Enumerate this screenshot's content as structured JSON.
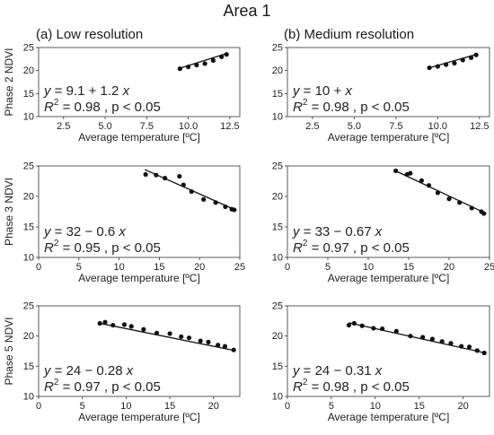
{
  "title": "Area 1",
  "columns": [
    "(a) Low resolution",
    "(b) Medium resolution"
  ],
  "chart_data": [
    {
      "type": "scatter",
      "panel": "(a) Low resolution / Phase 2",
      "xlabel": "Average temperature [ºC]",
      "ylabel": "Phase 2 NDVI",
      "xlim": [
        1,
        13.1
      ],
      "ylim": [
        10,
        25
      ],
      "xticks": [
        2.5,
        5.0,
        7.5,
        10.0,
        12.5
      ],
      "xtick_labels": [
        "2.5",
        "5.0",
        "7.5",
        "10.0",
        "12.5"
      ],
      "yticks": [
        10,
        15,
        20,
        25
      ],
      "eq": "y = 9.1 + 1.2 x",
      "stats": "R² = 0.98 , p < 0.05",
      "points": [
        [
          9.5,
          20.4
        ],
        [
          10.0,
          20.8
        ],
        [
          10.5,
          21.2
        ],
        [
          11.0,
          21.5
        ],
        [
          11.5,
          22.2
        ],
        [
          12.0,
          23.0
        ],
        [
          12.3,
          23.5
        ]
      ],
      "fit": [
        [
          9.4,
          20.4
        ],
        [
          12.4,
          23.8
        ]
      ]
    },
    {
      "type": "scatter",
      "panel": "(b) Medium resolution / Phase 2",
      "xlabel": "Average temperature [ºC]",
      "ylabel": "",
      "xlim": [
        1,
        13.1
      ],
      "ylim": [
        10,
        25
      ],
      "xticks": [
        2.5,
        5.0,
        7.5,
        10.0,
        12.5
      ],
      "xtick_labels": [
        "2.5",
        "5.0",
        "7.5",
        "10.0",
        "12.5"
      ],
      "yticks": [
        10,
        15,
        20,
        25
      ],
      "eq": "y = 10 + x",
      "stats": "R² = 0.98 , p < 0.05",
      "points": [
        [
          9.5,
          20.6
        ],
        [
          10.0,
          20.9
        ],
        [
          10.5,
          21.3
        ],
        [
          11.0,
          21.6
        ],
        [
          11.5,
          22.3
        ],
        [
          12.0,
          22.8
        ],
        [
          12.3,
          23.4
        ]
      ],
      "fit": [
        [
          9.4,
          20.5
        ],
        [
          12.4,
          23.6
        ]
      ]
    },
    {
      "type": "scatter",
      "panel": "(a) Low resolution / Phase 3",
      "xlabel": "Average temperature [ºC]",
      "ylabel": "Phase 3 NDVI",
      "xlim": [
        0,
        25
      ],
      "ylim": [
        10,
        25
      ],
      "xticks": [
        0,
        5,
        10,
        15,
        20,
        25
      ],
      "xtick_labels": [
        "0",
        "5",
        "10",
        "15",
        "20",
        "25"
      ],
      "yticks": [
        10,
        15,
        20,
        25
      ],
      "eq": "y = 32 − 0.6 x",
      "stats": "R² = 0.95 , p < 0.05",
      "points": [
        [
          13.3,
          23.6
        ],
        [
          14.6,
          23.5
        ],
        [
          15.7,
          23.0
        ],
        [
          17.5,
          23.3
        ],
        [
          18.0,
          21.9
        ],
        [
          19.0,
          20.8
        ],
        [
          20.5,
          19.5
        ],
        [
          22.0,
          19.0
        ],
        [
          23.2,
          18.3
        ],
        [
          24.0,
          17.9
        ],
        [
          24.3,
          17.8
        ]
      ],
      "fit": [
        [
          13.2,
          24.4
        ],
        [
          24.6,
          17.7
        ]
      ]
    },
    {
      "type": "scatter",
      "panel": "(b) Medium resolution / Phase 3",
      "xlabel": "Average temperature [ºC]",
      "ylabel": "",
      "xlim": [
        0,
        25
      ],
      "ylim": [
        10,
        25
      ],
      "xticks": [
        0,
        5,
        10,
        15,
        20,
        25
      ],
      "xtick_labels": [
        "0",
        "5",
        "10",
        "15",
        "20",
        "25"
      ],
      "yticks": [
        10,
        15,
        20,
        25
      ],
      "eq": "y = 33 − 0.67 x",
      "stats": "R² = 0.97 , p < 0.05",
      "points": [
        [
          13.4,
          24.2
        ],
        [
          14.8,
          23.6
        ],
        [
          15.2,
          23.8
        ],
        [
          16.6,
          22.6
        ],
        [
          17.5,
          21.8
        ],
        [
          18.6,
          20.6
        ],
        [
          20.0,
          19.6
        ],
        [
          21.3,
          19.0
        ],
        [
          22.8,
          18.1
        ],
        [
          24.0,
          17.5
        ],
        [
          24.3,
          17.2
        ]
      ],
      "fit": [
        [
          13.2,
          24.3
        ],
        [
          24.6,
          17.2
        ]
      ]
    },
    {
      "type": "scatter",
      "panel": "(a) Low resolution / Phase 5",
      "xlabel": "Average temperature [ºC]",
      "ylabel": "Phase 5 NDVI",
      "xlim": [
        0,
        23
      ],
      "ylim": [
        10,
        25
      ],
      "xticks": [
        0,
        5,
        10,
        15,
        20
      ],
      "xtick_labels": [
        "0",
        "5",
        "10",
        "15",
        "20"
      ],
      "yticks": [
        10,
        15,
        20,
        25
      ],
      "eq": "y = 24 − 0.28 x",
      "stats": "R² = 0.97 , p < 0.05",
      "points": [
        [
          7.0,
          22.1
        ],
        [
          7.6,
          22.3
        ],
        [
          8.5,
          21.8
        ],
        [
          9.8,
          21.9
        ],
        [
          10.6,
          21.6
        ],
        [
          12.0,
          21.1
        ],
        [
          13.5,
          20.5
        ],
        [
          15.0,
          20.4
        ],
        [
          16.3,
          19.9
        ],
        [
          17.2,
          19.7
        ],
        [
          18.5,
          19.2
        ],
        [
          19.4,
          19.0
        ],
        [
          20.5,
          18.5
        ],
        [
          21.3,
          18.3
        ],
        [
          22.3,
          17.7
        ]
      ],
      "fit": [
        [
          7.0,
          22.1
        ],
        [
          22.4,
          17.6
        ]
      ]
    },
    {
      "type": "scatter",
      "panel": "(b) Medium resolution / Phase 5",
      "xlabel": "Average temperature [ºC]",
      "ylabel": "",
      "xlim": [
        0,
        23
      ],
      "ylim": [
        10,
        25
      ],
      "xticks": [
        0,
        5,
        10,
        15,
        20
      ],
      "xtick_labels": [
        "0",
        "5",
        "10",
        "15",
        "20"
      ],
      "yticks": [
        10,
        15,
        20,
        25
      ],
      "eq": "y = 24 − 0.31 x",
      "stats": "R² = 0.98 , p < 0.05",
      "points": [
        [
          7.0,
          21.8
        ],
        [
          7.6,
          22.1
        ],
        [
          8.5,
          21.7
        ],
        [
          9.8,
          21.3
        ],
        [
          10.8,
          21.2
        ],
        [
          12.4,
          20.8
        ],
        [
          14.0,
          20.0
        ],
        [
          15.4,
          19.8
        ],
        [
          16.5,
          19.5
        ],
        [
          17.6,
          19.1
        ],
        [
          18.6,
          18.8
        ],
        [
          19.8,
          18.3
        ],
        [
          20.7,
          18.2
        ],
        [
          21.6,
          17.6
        ],
        [
          22.4,
          17.2
        ]
      ],
      "fit": [
        [
          7.0,
          22.2
        ],
        [
          22.5,
          17.2
        ]
      ]
    }
  ]
}
